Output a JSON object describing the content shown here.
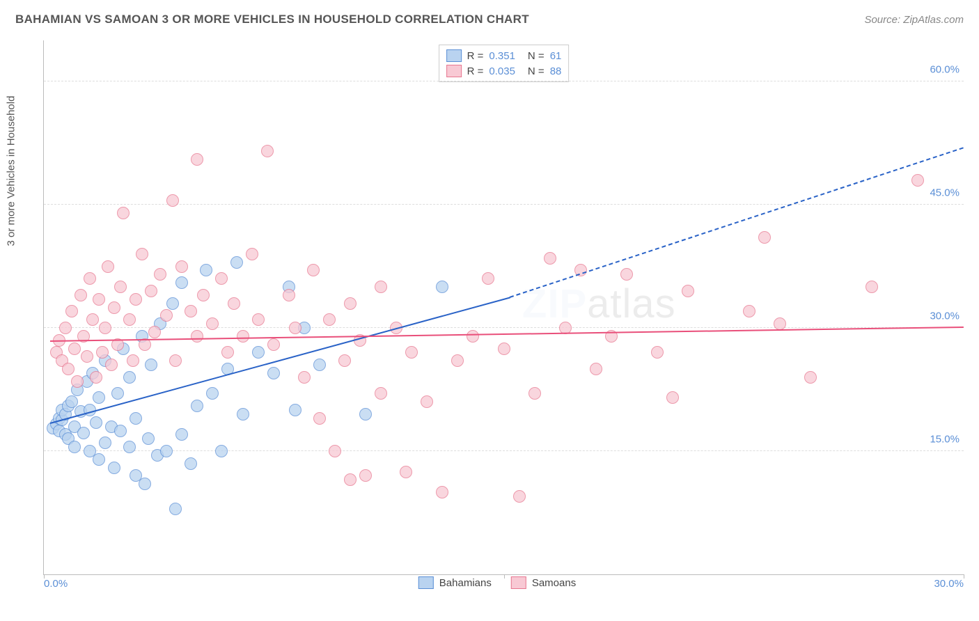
{
  "title": "BAHAMIAN VS SAMOAN 3 OR MORE VEHICLES IN HOUSEHOLD CORRELATION CHART",
  "source": "Source: ZipAtlas.com",
  "chart": {
    "type": "scatter",
    "y_axis_label": "3 or more Vehicles in Household",
    "background_color": "#ffffff",
    "grid_color": "#dddddd",
    "axis_color": "#bbbbbb",
    "xlim": [
      0,
      30
    ],
    "ylim": [
      0,
      65
    ],
    "x_ticks": [
      {
        "pos": 0,
        "label": "0.0%"
      },
      {
        "pos": 15,
        "label": ""
      },
      {
        "pos": 30,
        "label": "30.0%"
      }
    ],
    "y_ticks": [
      {
        "pos": 15,
        "label": "15.0%"
      },
      {
        "pos": 30,
        "label": "30.0%"
      },
      {
        "pos": 45,
        "label": "45.0%"
      },
      {
        "pos": 60,
        "label": "60.0%"
      }
    ],
    "series": [
      {
        "name": "Bahamians",
        "marker_fill": "#b9d3f0",
        "marker_stroke": "#5b8fd6",
        "marker_opacity": 0.75,
        "marker_size": 18,
        "trend_color": "#2962c7",
        "trend_start": [
          0.2,
          18.5
        ],
        "trend_solid_end": [
          15.2,
          33.8
        ],
        "trend_dash_end": [
          30.0,
          52.0
        ],
        "stats": {
          "R": "0.351",
          "N": "61"
        },
        "points": [
          [
            0.3,
            17.8
          ],
          [
            0.4,
            18.3
          ],
          [
            0.5,
            17.5
          ],
          [
            0.5,
            19.0
          ],
          [
            0.6,
            18.8
          ],
          [
            0.6,
            20.0
          ],
          [
            0.7,
            17.0
          ],
          [
            0.7,
            19.5
          ],
          [
            0.8,
            16.5
          ],
          [
            0.8,
            20.5
          ],
          [
            0.9,
            21.0
          ],
          [
            1.0,
            18.0
          ],
          [
            1.0,
            15.5
          ],
          [
            1.1,
            22.5
          ],
          [
            1.2,
            19.8
          ],
          [
            1.3,
            17.2
          ],
          [
            1.4,
            23.5
          ],
          [
            1.5,
            20.0
          ],
          [
            1.5,
            15.0
          ],
          [
            1.6,
            24.5
          ],
          [
            1.7,
            18.5
          ],
          [
            1.8,
            14.0
          ],
          [
            1.8,
            21.5
          ],
          [
            2.0,
            26.0
          ],
          [
            2.0,
            16.0
          ],
          [
            2.2,
            18.0
          ],
          [
            2.3,
            13.0
          ],
          [
            2.4,
            22.0
          ],
          [
            2.5,
            17.5
          ],
          [
            2.6,
            27.5
          ],
          [
            2.8,
            15.5
          ],
          [
            2.8,
            24.0
          ],
          [
            3.0,
            19.0
          ],
          [
            3.0,
            12.0
          ],
          [
            3.2,
            29.0
          ],
          [
            3.3,
            11.0
          ],
          [
            3.4,
            16.5
          ],
          [
            3.5,
            25.5
          ],
          [
            3.7,
            14.5
          ],
          [
            3.8,
            30.5
          ],
          [
            4.0,
            15.0
          ],
          [
            4.2,
            33.0
          ],
          [
            4.3,
            8.0
          ],
          [
            4.5,
            17.0
          ],
          [
            4.5,
            35.5
          ],
          [
            4.8,
            13.5
          ],
          [
            5.0,
            20.5
          ],
          [
            5.3,
            37.0
          ],
          [
            5.5,
            22.0
          ],
          [
            5.8,
            15.0
          ],
          [
            6.0,
            25.0
          ],
          [
            6.3,
            38.0
          ],
          [
            6.5,
            19.5
          ],
          [
            7.0,
            27.0
          ],
          [
            7.5,
            24.5
          ],
          [
            8.0,
            35.0
          ],
          [
            8.2,
            20.0
          ],
          [
            8.5,
            30.0
          ],
          [
            9.0,
            25.5
          ],
          [
            10.5,
            19.5
          ],
          [
            13.0,
            35.0
          ]
        ]
      },
      {
        "name": "Samoans",
        "marker_fill": "#f8c9d4",
        "marker_stroke": "#e77790",
        "marker_opacity": 0.75,
        "marker_size": 18,
        "trend_color": "#e94f7a",
        "trend_start": [
          0.2,
          28.5
        ],
        "trend_solid_end": [
          30.0,
          30.2
        ],
        "trend_dash_end": null,
        "stats": {
          "R": "0.035",
          "N": "88"
        },
        "points": [
          [
            0.4,
            27.0
          ],
          [
            0.5,
            28.5
          ],
          [
            0.6,
            26.0
          ],
          [
            0.7,
            30.0
          ],
          [
            0.8,
            25.0
          ],
          [
            0.9,
            32.0
          ],
          [
            1.0,
            27.5
          ],
          [
            1.1,
            23.5
          ],
          [
            1.2,
            34.0
          ],
          [
            1.3,
            29.0
          ],
          [
            1.4,
            26.5
          ],
          [
            1.5,
            36.0
          ],
          [
            1.6,
            31.0
          ],
          [
            1.7,
            24.0
          ],
          [
            1.8,
            33.5
          ],
          [
            1.9,
            27.0
          ],
          [
            2.0,
            30.0
          ],
          [
            2.1,
            37.5
          ],
          [
            2.2,
            25.5
          ],
          [
            2.3,
            32.5
          ],
          [
            2.4,
            28.0
          ],
          [
            2.5,
            35.0
          ],
          [
            2.6,
            44.0
          ],
          [
            2.8,
            31.0
          ],
          [
            2.9,
            26.0
          ],
          [
            3.0,
            33.5
          ],
          [
            3.2,
            39.0
          ],
          [
            3.3,
            28.0
          ],
          [
            3.5,
            34.5
          ],
          [
            3.6,
            29.5
          ],
          [
            3.8,
            36.5
          ],
          [
            4.0,
            31.5
          ],
          [
            4.2,
            45.5
          ],
          [
            4.3,
            26.0
          ],
          [
            4.5,
            37.5
          ],
          [
            4.8,
            32.0
          ],
          [
            5.0,
            29.0
          ],
          [
            5.0,
            50.5
          ],
          [
            5.2,
            34.0
          ],
          [
            5.5,
            30.5
          ],
          [
            5.8,
            36.0
          ],
          [
            6.0,
            27.0
          ],
          [
            6.2,
            33.0
          ],
          [
            6.5,
            29.0
          ],
          [
            6.8,
            39.0
          ],
          [
            7.0,
            31.0
          ],
          [
            7.3,
            51.5
          ],
          [
            7.5,
            28.0
          ],
          [
            8.0,
            34.0
          ],
          [
            8.2,
            30.0
          ],
          [
            8.5,
            24.0
          ],
          [
            8.8,
            37.0
          ],
          [
            9.0,
            19.0
          ],
          [
            9.3,
            31.0
          ],
          [
            9.5,
            15.0
          ],
          [
            9.8,
            26.0
          ],
          [
            10.0,
            11.5
          ],
          [
            10.0,
            33.0
          ],
          [
            10.3,
            28.5
          ],
          [
            10.5,
            12.0
          ],
          [
            11.0,
            22.0
          ],
          [
            11.0,
            35.0
          ],
          [
            11.5,
            30.0
          ],
          [
            11.8,
            12.5
          ],
          [
            12.0,
            27.0
          ],
          [
            12.5,
            21.0
          ],
          [
            13.0,
            10.0
          ],
          [
            13.5,
            26.0
          ],
          [
            14.0,
            29.0
          ],
          [
            14.5,
            36.0
          ],
          [
            15.0,
            27.5
          ],
          [
            15.5,
            9.5
          ],
          [
            16.0,
            22.0
          ],
          [
            16.5,
            38.5
          ],
          [
            17.0,
            30.0
          ],
          [
            17.5,
            37.0
          ],
          [
            18.0,
            25.0
          ],
          [
            18.5,
            29.0
          ],
          [
            19.0,
            36.5
          ],
          [
            20.0,
            27.0
          ],
          [
            20.5,
            21.5
          ],
          [
            21.0,
            34.5
          ],
          [
            23.0,
            32.0
          ],
          [
            23.5,
            41.0
          ],
          [
            24.0,
            30.5
          ],
          [
            25.0,
            24.0
          ],
          [
            27.0,
            35.0
          ],
          [
            28.5,
            48.0
          ]
        ]
      }
    ],
    "watermark": {
      "zip": "ZIP",
      "atlas": "atlas"
    },
    "legend_bottom": [
      {
        "label": "Bahamians",
        "fill": "#b9d3f0",
        "stroke": "#5b8fd6"
      },
      {
        "label": "Samoans",
        "fill": "#f8c9d4",
        "stroke": "#e77790"
      }
    ]
  }
}
